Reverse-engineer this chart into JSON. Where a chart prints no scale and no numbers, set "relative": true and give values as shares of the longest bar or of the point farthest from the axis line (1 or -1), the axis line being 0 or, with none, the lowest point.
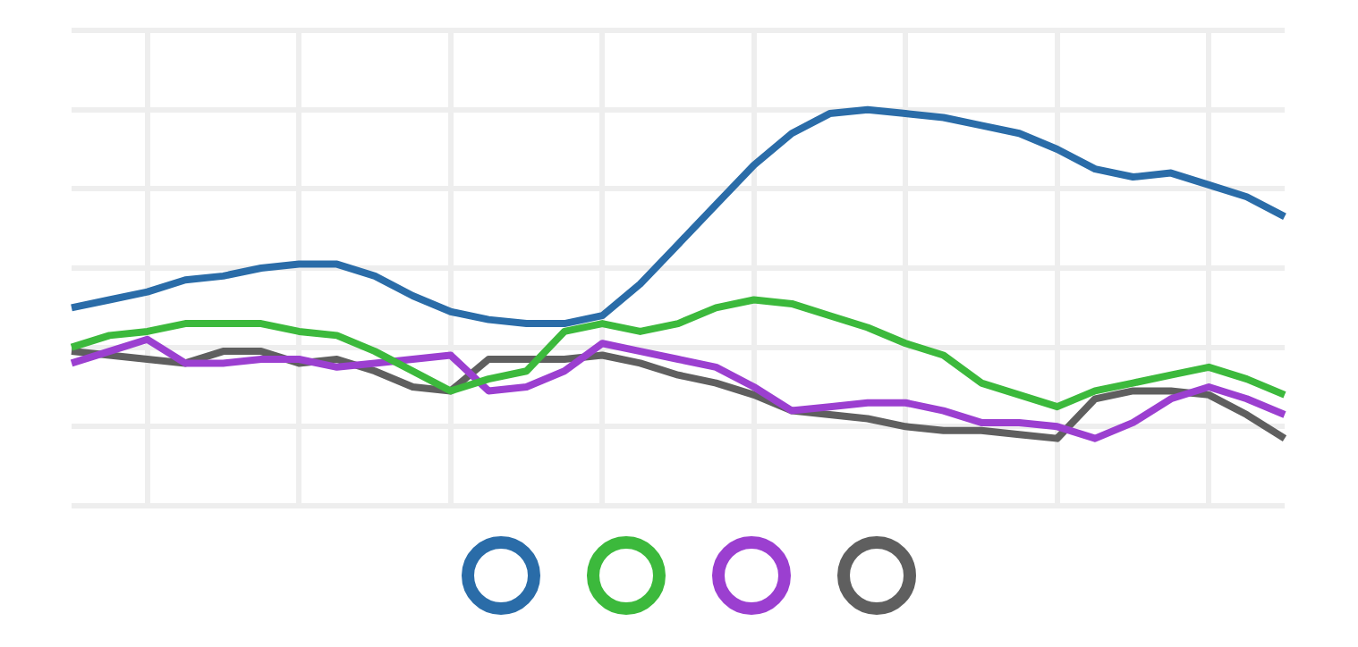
{
  "chart_data": {
    "type": "line",
    "relative": true,
    "grid": true,
    "marker": "none",
    "line_style": "solid",
    "categories": [
      null,
      null,
      null,
      null,
      null,
      null,
      null,
      null,
      null,
      null,
      null,
      null,
      null,
      null,
      null,
      null,
      null,
      null,
      null,
      null,
      null,
      null,
      null,
      null,
      null,
      null,
      null,
      null,
      null,
      null,
      null,
      null,
      null
    ],
    "series": [
      {
        "color": "#2a6ca8",
        "values": [
          0.5,
          0.52,
          0.54,
          0.57,
          0.58,
          0.6,
          0.61,
          0.61,
          0.58,
          0.53,
          0.49,
          0.47,
          0.46,
          0.46,
          0.48,
          0.56,
          0.66,
          0.76,
          0.86,
          0.94,
          0.99,
          1,
          0.99,
          0.98,
          0.96,
          0.94,
          0.9,
          0.85,
          0.83,
          0.84,
          0.81,
          0.78,
          0.73
        ]
      },
      {
        "color": "#3cb93c",
        "values": [
          0.4,
          0.43,
          0.44,
          0.46,
          0.46,
          0.46,
          0.44,
          0.43,
          0.39,
          0.34,
          0.29,
          0.32,
          0.34,
          0.44,
          0.46,
          0.44,
          0.46,
          0.5,
          0.52,
          0.51,
          0.48,
          0.45,
          0.41,
          0.38,
          0.31,
          0.28,
          0.25,
          0.29,
          0.31,
          0.33,
          0.35,
          0.32,
          0.28
        ]
      },
      {
        "color": "#9b3fd0",
        "values": [
          0.36,
          0.39,
          0.42,
          0.36,
          0.36,
          0.37,
          0.37,
          0.35,
          0.36,
          0.37,
          0.38,
          0.29,
          0.3,
          0.34,
          0.41,
          0.39,
          0.37,
          0.35,
          0.3,
          0.24,
          0.25,
          0.26,
          0.26,
          0.24,
          0.21,
          0.21,
          0.2,
          0.17,
          0.21,
          0.27,
          0.3,
          0.27,
          0.23
        ]
      },
      {
        "color": "#5f5f5f",
        "values": [
          0.39,
          0.38,
          0.37,
          0.36,
          0.39,
          0.39,
          0.36,
          0.37,
          0.34,
          0.3,
          0.29,
          0.37,
          0.37,
          0.37,
          0.38,
          0.36,
          0.33,
          0.31,
          0.28,
          0.24,
          0.23,
          0.22,
          0.2,
          0.19,
          0.19,
          0.18,
          0.17,
          0.27,
          0.29,
          0.29,
          0.28,
          0.23,
          0.17
        ]
      }
    ]
  }
}
